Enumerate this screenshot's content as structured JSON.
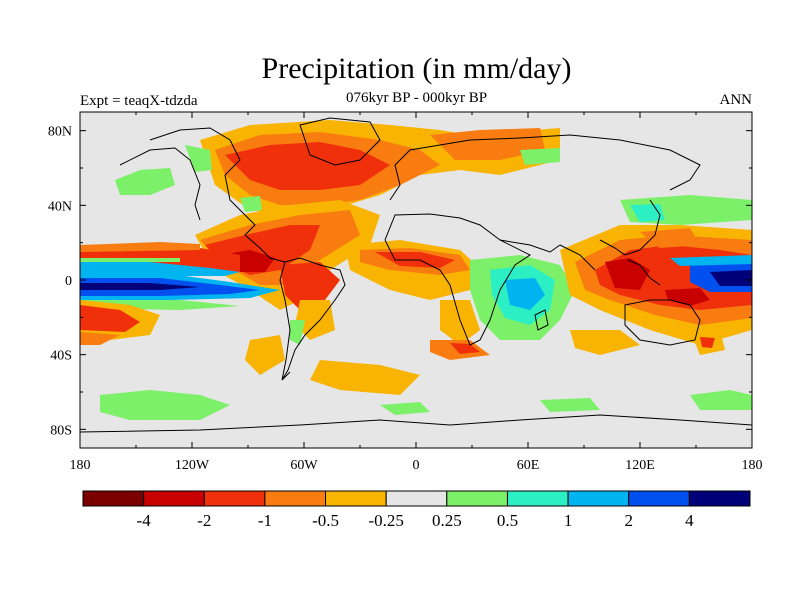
{
  "title": "Precipitation (in mm/day)",
  "subtitle": "076kyr BP - 000kyr BP",
  "experiment_label": "Expt = teaqX-tdzda",
  "season_label": "ANN",
  "lat_ticks": [
    "80N",
    "40N",
    "0",
    "40S",
    "80S"
  ],
  "lon_ticks": [
    "180",
    "120W",
    "60W",
    "0",
    "60E",
    "120E",
    "180"
  ],
  "colorbar": {
    "colors": [
      "#7a0000",
      "#c80000",
      "#f0300a",
      "#f87c10",
      "#f8b400",
      "#e6e6e6",
      "#7cf068",
      "#2cf0c4",
      "#00b4f0",
      "#0050f0",
      "#000078"
    ],
    "labels": [
      "-4",
      "-2",
      "-1",
      "-0.5",
      "-0.25",
      "0.25",
      "0.5",
      "1",
      "2",
      "4"
    ]
  },
  "colors": {
    "neutral": "#e6e6e6"
  }
}
